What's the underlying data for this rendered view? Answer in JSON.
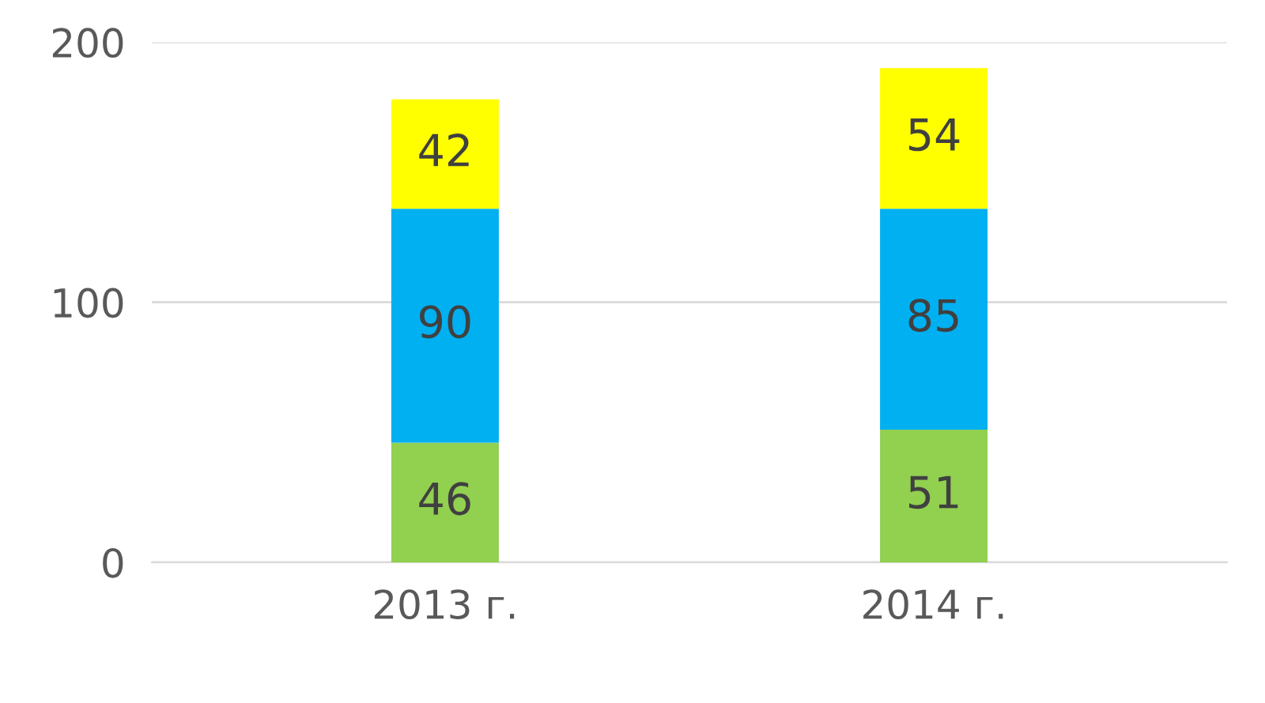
{
  "chart_data": {
    "type": "bar",
    "stacked": true,
    "categories": [
      "2013 г.",
      "2014 г."
    ],
    "series": [
      {
        "color": "#92d050",
        "values": [
          46,
          51
        ]
      },
      {
        "color": "#00b0f0",
        "values": [
          90,
          85
        ]
      },
      {
        "color": "#ffff00",
        "values": [
          42,
          54
        ]
      }
    ],
    "ylim": [
      0,
      200
    ],
    "yticks": [
      0,
      100,
      200
    ],
    "grid": "y",
    "data_labels": true
  }
}
